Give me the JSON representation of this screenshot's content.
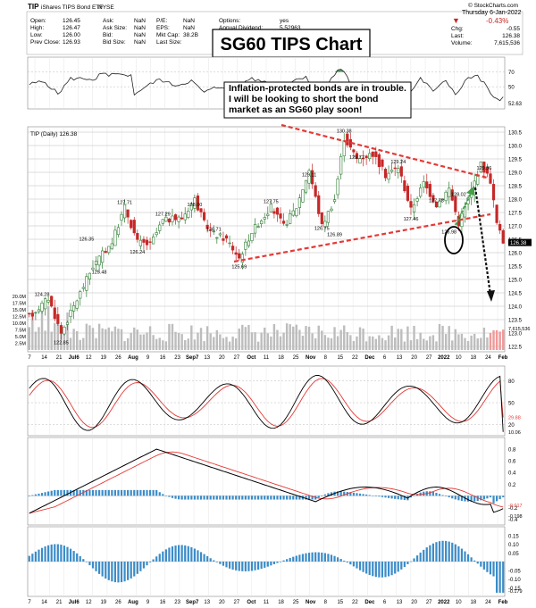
{
  "header": {
    "ticker": "TIP",
    "name": "iShares TIPS Bond ETF",
    "exchange": "NYSE",
    "date": "Thursday 6-Jan-2022",
    "source": "© StockCharts.com",
    "change_pct": "-0.43%",
    "fields_left": [
      {
        "label": "Open:",
        "value": "126.45"
      },
      {
        "label": "High:",
        "value": "126.47"
      },
      {
        "label": "Low:",
        "value": "126.00"
      },
      {
        "label": "Prev Close:",
        "value": "126.93"
      }
    ],
    "fields_mid": [
      {
        "label": "Ask:",
        "value": "NaN"
      },
      {
        "label": "Ask Size:",
        "value": "NaN"
      },
      {
        "label": "Bid:",
        "value": "NaN"
      },
      {
        "label": "Bid Size:",
        "value": "NaN"
      }
    ],
    "fields_mid2": [
      {
        "label": "P/E:",
        "value": "NaN"
      },
      {
        "label": "EPS:",
        "value": "NaN"
      },
      {
        "label": "Mkt Cap:",
        "value": "38.2B"
      },
      {
        "label": "Last Size:",
        "value": ""
      }
    ],
    "options_label": "Options:",
    "options_value": "yes",
    "dividend_label": "Annual Dividend:",
    "dividend_value": "5.52963",
    "fields_right": [
      {
        "label": "Chg:",
        "value": "-0.55"
      },
      {
        "label": "Last:",
        "value": "126.38"
      },
      {
        "label": "Volume:",
        "value": "7,615,536"
      }
    ]
  },
  "title_box": "SG60 TIPS Chart",
  "annotation": "Inflation-protected bonds are in trouble.  I will be looking to short the bond market as an SG60 play soon!",
  "price_label": "TIP (Daily) 126.38",
  "colors": {
    "up": "#2e7d32",
    "down": "#c62828",
    "trendline": "#e53935",
    "osc_black": "#000000",
    "osc_red": "#e53935",
    "hist": "#3b8cc8",
    "rsi_fill": "#2e7d32",
    "volume": "#bdbdbd",
    "arrow_up": "#43a047",
    "arrow_down": "#111111"
  },
  "chart_data": [
    {
      "type": "line",
      "panel": "RSI",
      "y_ticks": [
        50,
        70
      ],
      "last_label": "52.63"
    },
    {
      "type": "candlestick",
      "panel": "price",
      "title": "TIP (Daily) 126.38",
      "ylim": [
        122.5,
        130.5
      ],
      "y_ticks": [
        "122.5",
        "123.0",
        "123.5",
        "124.0",
        "124.5",
        "125.0",
        "125.5",
        "126.0",
        "126.5",
        "127.0",
        "127.5",
        "128.0",
        "128.5",
        "129.0",
        "129.5",
        "130.0",
        "130.5"
      ],
      "last_label": "126.38",
      "x_labels": [
        "7",
        "14",
        "21",
        "Jul6",
        "12",
        "19",
        "26",
        "Aug",
        "9",
        "16",
        "23",
        "Sep7",
        "13",
        "20",
        "27",
        "Oct",
        "11",
        "18",
        "25",
        "Nov",
        "8",
        "15",
        "22",
        "Dec",
        "6",
        "13",
        "20",
        "27",
        "2022",
        "10",
        "18",
        "24",
        "Feb"
      ],
      "price_labels": [
        {
          "text": "124.28",
          "value": 124.28
        },
        {
          "text": "122.85",
          "value": 122.85
        },
        {
          "text": "126.35",
          "value": 126.35
        },
        {
          "text": "125.48",
          "value": 125.48
        },
        {
          "text": "127.71",
          "value": 127.71
        },
        {
          "text": "126.24",
          "value": 126.24
        },
        {
          "text": "127.29",
          "value": 127.29
        },
        {
          "text": "128.00",
          "value": 128.0
        },
        {
          "text": "126.71",
          "value": 126.71
        },
        {
          "text": "125.69",
          "value": 125.69
        },
        {
          "text": "127.75",
          "value": 127.75
        },
        {
          "text": "129.11",
          "value": 129.11
        },
        {
          "text": "126.75",
          "value": 126.75
        },
        {
          "text": "126.89",
          "value": 126.89
        },
        {
          "text": "130.38",
          "value": 130.38
        },
        {
          "text": "129.77",
          "value": 129.77
        },
        {
          "text": "129.24",
          "value": 129.24
        },
        {
          "text": "127.46",
          "value": 127.46
        },
        {
          "text": "127.78",
          "value": 127.78
        },
        {
          "text": "126.98",
          "value": 126.98
        },
        {
          "text": "128.02",
          "value": 128.02
        },
        {
          "text": "129.36",
          "value": 129.36
        }
      ],
      "volume_ticks": [
        "2.5M",
        "5.0M",
        "7.5M",
        "10.0M",
        "12.5M",
        "15.0M",
        "17.5M",
        "20.0M"
      ],
      "volume_last_label": "7,615,536"
    },
    {
      "type": "line",
      "panel": "Stochastic",
      "y_ticks": [
        20,
        50,
        80
      ],
      "last_labels": [
        "29.88",
        "10.06"
      ]
    },
    {
      "type": "line",
      "panel": "MACD",
      "y_ticks": [
        "0.8",
        "0.6",
        "0.4",
        "0.2",
        "-0.2",
        "-0.4"
      ],
      "last_labels": [
        "-0.017",
        "-0.198"
      ]
    },
    {
      "type": "bar",
      "panel": "Histogram",
      "y_ticks": [
        "0.15",
        "0.10",
        "0.05",
        "-0.05",
        "-0.10",
        "-0.15"
      ],
      "last_label": "-0.179"
    }
  ]
}
